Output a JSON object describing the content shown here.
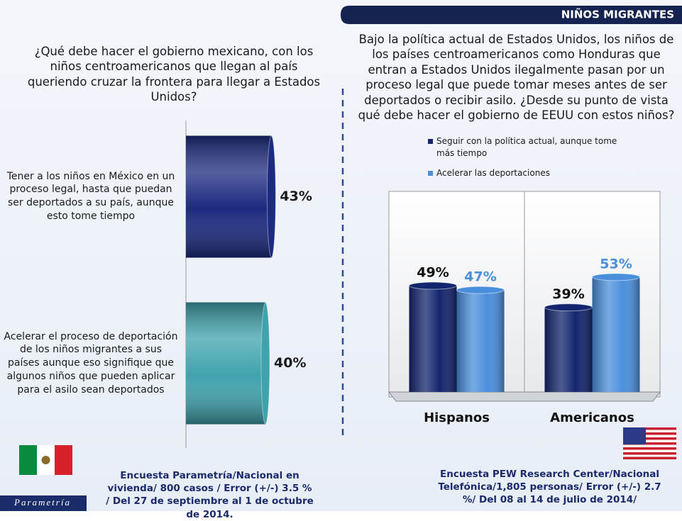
{
  "header": {
    "title": "NIÑOS MIGRANTES"
  },
  "chart_data": [
    {
      "type": "bar",
      "orientation": "horizontal",
      "title": "¿Qué debe hacer el gobierno mexicano, con los niños centroamericanos que llegan al país queriendo cruzar la frontera para llegar a Estados Unidos?",
      "categories": [
        "Tener a los niños en México en un proceso legal, hasta que puedan ser deportados a su país, aunque esto tome tiempo",
        "Acelerar el proceso de deportación de los niños migrantes  a sus países  aunque eso signifique que algunos niños que pueden aplicar para el asilo sean deportados"
      ],
      "values": [
        43,
        40
      ],
      "value_labels": [
        "43%",
        "40%"
      ],
      "colors": [
        "#1c2a80",
        "#3fa3ad"
      ],
      "source": "Encuesta Parametría/Nacional en vivienda/ 800 casos / Error (+/-) 3.5 % / Del 27 de septiembre al 1 de octubre de 2014."
    },
    {
      "type": "bar",
      "orientation": "vertical",
      "title": "Bajo la política actual de Estados Unidos, los niños de los países centroamericanos como Honduras que entran a Estados Unidos ilegalmente pasan por un proceso legal que puede tomar meses antes de ser deportados o recibir asilo. ¿Desde su punto de vista qué debe hacer el gobierno de EEUU con estos niños?",
      "categories": [
        "Hispanos",
        "Americanos"
      ],
      "series": [
        {
          "name": "Seguir con la política actual, aunque tome más tiempo",
          "color": "#13256e",
          "values": [
            49,
            39
          ],
          "value_labels": [
            "49%",
            "39%"
          ]
        },
        {
          "name": "Acelerar las deportaciones",
          "color": "#4a8fdc",
          "values": [
            47,
            53
          ],
          "value_labels": [
            "47%",
            "53%"
          ]
        }
      ],
      "legend": "top",
      "source": "Encuesta PEW Research Center/Nacional Telefónica/1,805 personas/ Error (+/-) 2.7 %/ Del 08 al 14 de julio de 2014/"
    }
  ],
  "logo": "Parametría"
}
